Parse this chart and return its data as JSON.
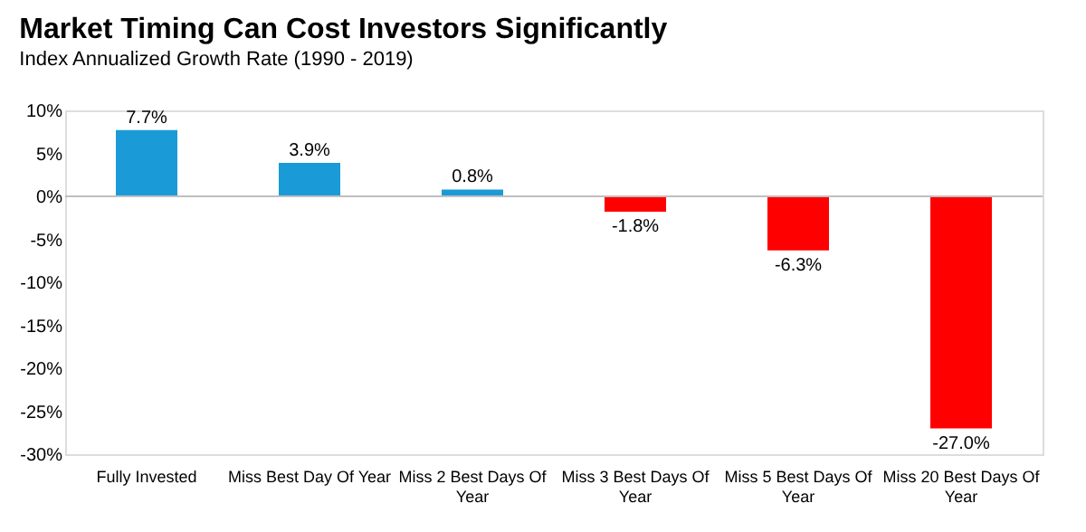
{
  "chart_data": {
    "type": "bar",
    "title": "Market Timing Can Cost Investors Significantly",
    "subtitle": "Index Annualized Growth Rate (1990 - 2019)",
    "categories": [
      "Fully Invested",
      "Miss Best Day Of Year",
      "Miss 2 Best Days Of Year",
      "Miss 3 Best Days Of Year",
      "Miss 5 Best Days Of Year",
      "Miss 20 Best Days Of Year"
    ],
    "values": [
      7.7,
      3.9,
      0.8,
      -1.8,
      -6.3,
      -27.0
    ],
    "value_labels": [
      "7.7%",
      "3.9%",
      "0.8%",
      "-1.8%",
      "-6.3%",
      "-27.0%"
    ],
    "colors": [
      "#1a9bd7",
      "#1a9bd7",
      "#1a9bd7",
      "#ff0000",
      "#ff0000",
      "#ff0000"
    ],
    "ylim": [
      -30,
      10
    ],
    "yticks": [
      {
        "value": 10,
        "label": "10%"
      },
      {
        "value": 5,
        "label": "5%"
      },
      {
        "value": 0,
        "label": "0%"
      },
      {
        "value": -5,
        "label": "-5%"
      },
      {
        "value": -10,
        "label": "-10%"
      },
      {
        "value": -15,
        "label": "-15%"
      },
      {
        "value": -20,
        "label": "-20%"
      },
      {
        "value": -25,
        "label": "-25%"
      },
      {
        "value": -30,
        "label": "-30%"
      }
    ],
    "ref_lines": [
      {
        "axis": "y",
        "value": 0,
        "color": "#bfbfbf"
      }
    ],
    "grid": false
  }
}
